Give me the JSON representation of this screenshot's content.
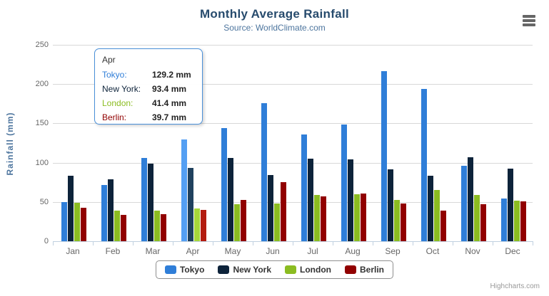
{
  "header": {
    "title": "Monthly Average Rainfall",
    "subtitle": "Source: WorldClimate.com"
  },
  "credits": "Highcharts.com",
  "tooltip": {
    "header": "Apr",
    "border_color": "#4a90d9",
    "rows": [
      {
        "label": "Tokyo:",
        "value": "129.2 mm",
        "color": "#2f7ed8"
      },
      {
        "label": "New York:",
        "value": "93.4 mm",
        "color": "#0d233a"
      },
      {
        "label": "London:",
        "value": "41.4 mm",
        "color": "#8bbc21"
      },
      {
        "label": "Berlin:",
        "value": "39.7 mm",
        "color": "#910000"
      }
    ]
  },
  "chart_data": {
    "type": "bar",
    "title": "Monthly Average Rainfall",
    "subtitle": "Source: WorldClimate.com",
    "xlabel": "",
    "ylabel": "Rainfall (mm)",
    "ylim": [
      0,
      250
    ],
    "y_ticks": [
      0,
      50,
      100,
      150,
      200,
      250
    ],
    "grid": true,
    "legend_position": "bottom",
    "categories": [
      "Jan",
      "Feb",
      "Mar",
      "Apr",
      "May",
      "Jun",
      "Jul",
      "Aug",
      "Sep",
      "Oct",
      "Nov",
      "Dec"
    ],
    "highlighted_category": "Apr",
    "series": [
      {
        "name": "Tokyo",
        "color": "#2f7ed8",
        "hover_color": "#549ff3",
        "values": [
          49.9,
          71.5,
          106.4,
          129.2,
          144.0,
          176.0,
          135.6,
          148.5,
          216.4,
          194.1,
          95.6,
          54.4
        ]
      },
      {
        "name": "New York",
        "color": "#0d233a",
        "hover_color": "#20415e",
        "values": [
          83.6,
          78.8,
          98.5,
          93.4,
          106.0,
          84.5,
          105.0,
          104.3,
          91.2,
          83.5,
          106.6,
          92.3
        ]
      },
      {
        "name": "London",
        "color": "#8bbc21",
        "hover_color": "#a7d63a",
        "values": [
          48.9,
          38.8,
          39.3,
          41.4,
          47.0,
          48.3,
          59.0,
          59.6,
          52.4,
          65.2,
          59.3,
          51.2
        ]
      },
      {
        "name": "Berlin",
        "color": "#910000",
        "hover_color": "#b31c10",
        "values": [
          42.4,
          33.2,
          34.5,
          39.7,
          52.6,
          75.5,
          57.4,
          60.4,
          47.6,
          39.1,
          46.8,
          51.1
        ]
      }
    ]
  },
  "legend": {
    "items": [
      {
        "label": "Tokyo",
        "color": "#2f7ed8"
      },
      {
        "label": "New York",
        "color": "#0d233a"
      },
      {
        "label": "London",
        "color": "#8bbc21"
      },
      {
        "label": "Berlin",
        "color": "#910000"
      }
    ]
  }
}
